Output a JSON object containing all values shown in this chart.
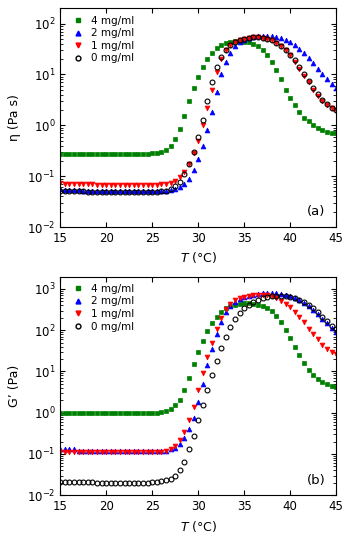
{
  "title_a": "(a)",
  "title_b": "(b)",
  "xlabel": "T (°C)",
  "ylabel_a": "η (Pa s)",
  "ylabel_b": "G’ (Pa)",
  "xlim": [
    15,
    45
  ],
  "ylim_a": [
    0.01,
    200
  ],
  "ylim_b": [
    0.01,
    2000
  ],
  "colors": {
    "4mg": "#008000",
    "2mg": "#0000FF",
    "1mg": "#FF0000",
    "0mg": "#000000"
  },
  "series_eta": {
    "4mg": {
      "T": [
        15.0,
        15.5,
        16.0,
        16.5,
        17.0,
        17.5,
        18.0,
        18.5,
        19.0,
        19.5,
        20.0,
        20.5,
        21.0,
        21.5,
        22.0,
        22.5,
        23.0,
        23.5,
        24.0,
        24.5,
        25.0,
        25.5,
        26.0,
        26.5,
        27.0,
        27.5,
        28.0,
        28.5,
        29.0,
        29.5,
        30.0,
        30.5,
        31.0,
        31.5,
        32.0,
        32.5,
        33.0,
        33.5,
        34.0,
        34.5,
        35.0,
        35.5,
        36.0,
        36.5,
        37.0,
        37.5,
        38.0,
        38.5,
        39.0,
        39.5,
        40.0,
        40.5,
        41.0,
        41.5,
        42.0,
        42.5,
        43.0,
        43.5,
        44.0,
        44.5,
        45.0
      ],
      "eta": [
        0.27,
        0.27,
        0.27,
        0.27,
        0.27,
        0.27,
        0.27,
        0.27,
        0.27,
        0.27,
        0.27,
        0.27,
        0.27,
        0.27,
        0.27,
        0.27,
        0.27,
        0.27,
        0.27,
        0.27,
        0.28,
        0.28,
        0.3,
        0.33,
        0.4,
        0.55,
        0.85,
        1.5,
        3.0,
        5.5,
        9.0,
        14.0,
        20.0,
        27.0,
        33.0,
        38.0,
        42.0,
        44.0,
        45.0,
        45.0,
        44.0,
        43.0,
        40.0,
        36.0,
        30.0,
        24.0,
        18.0,
        12.0,
        8.0,
        5.0,
        3.5,
        2.5,
        1.8,
        1.4,
        1.2,
        1.0,
        0.9,
        0.8,
        0.75,
        0.72,
        0.7
      ]
    },
    "2mg": {
      "T": [
        15.0,
        15.5,
        16.0,
        16.5,
        17.0,
        17.5,
        18.0,
        18.5,
        19.0,
        19.5,
        20.0,
        20.5,
        21.0,
        21.5,
        22.0,
        22.5,
        23.0,
        23.5,
        24.0,
        24.5,
        25.0,
        25.5,
        26.0,
        26.5,
        27.0,
        27.5,
        28.0,
        28.5,
        29.0,
        29.5,
        30.0,
        30.5,
        31.0,
        31.5,
        32.0,
        32.5,
        33.0,
        33.5,
        34.0,
        34.5,
        35.0,
        35.5,
        36.0,
        36.5,
        37.0,
        37.5,
        38.0,
        38.5,
        39.0,
        39.5,
        40.0,
        40.5,
        41.0,
        41.5,
        42.0,
        42.5,
        43.0,
        43.5,
        44.0,
        44.5,
        45.0
      ],
      "eta": [
        0.055,
        0.054,
        0.054,
        0.053,
        0.053,
        0.052,
        0.052,
        0.052,
        0.052,
        0.051,
        0.051,
        0.051,
        0.051,
        0.051,
        0.051,
        0.051,
        0.051,
        0.051,
        0.051,
        0.051,
        0.051,
        0.051,
        0.051,
        0.052,
        0.053,
        0.055,
        0.06,
        0.07,
        0.09,
        0.13,
        0.22,
        0.4,
        0.8,
        1.8,
        4.5,
        10.0,
        18.0,
        27.0,
        36.0,
        43.0,
        48.0,
        52.0,
        54.0,
        56.0,
        57.0,
        57.0,
        57.0,
        55.0,
        52.0,
        48.0,
        43.0,
        38.0,
        32.0,
        26.0,
        21.0,
        17.0,
        13.0,
        10.0,
        8.0,
        6.5,
        5.5
      ]
    },
    "1mg": {
      "T": [
        15.0,
        15.5,
        16.0,
        16.5,
        17.0,
        17.5,
        18.0,
        18.5,
        19.0,
        19.5,
        20.0,
        20.5,
        21.0,
        21.5,
        22.0,
        22.5,
        23.0,
        23.5,
        24.0,
        24.5,
        25.0,
        25.5,
        26.0,
        26.5,
        27.0,
        27.5,
        28.0,
        28.5,
        29.0,
        29.5,
        30.0,
        30.5,
        31.0,
        31.5,
        32.0,
        32.5,
        33.0,
        33.5,
        34.0,
        34.5,
        35.0,
        35.5,
        36.0,
        36.5,
        37.0,
        37.5,
        38.0,
        38.5,
        39.0,
        39.5,
        40.0,
        40.5,
        41.0,
        41.5,
        42.0,
        42.5,
        43.0,
        43.5,
        44.0,
        44.5,
        45.0
      ],
      "eta": [
        0.072,
        0.071,
        0.071,
        0.07,
        0.07,
        0.069,
        0.069,
        0.069,
        0.068,
        0.068,
        0.068,
        0.068,
        0.068,
        0.068,
        0.068,
        0.067,
        0.067,
        0.067,
        0.067,
        0.067,
        0.067,
        0.068,
        0.069,
        0.071,
        0.075,
        0.082,
        0.095,
        0.12,
        0.17,
        0.28,
        0.5,
        1.0,
        2.2,
        5.0,
        11.0,
        20.0,
        30.0,
        38.0,
        44.0,
        48.0,
        51.0,
        53.0,
        54.0,
        54.0,
        53.0,
        51.0,
        47.0,
        42.0,
        36.0,
        30.0,
        24.0,
        18.0,
        13.0,
        9.5,
        7.0,
        5.0,
        3.8,
        3.0,
        2.5,
        2.2,
        2.0
      ]
    },
    "0mg": {
      "T": [
        15.0,
        15.5,
        16.0,
        16.5,
        17.0,
        17.5,
        18.0,
        18.5,
        19.0,
        19.5,
        20.0,
        20.5,
        21.0,
        21.5,
        22.0,
        22.5,
        23.0,
        23.5,
        24.0,
        24.5,
        25.0,
        25.5,
        26.0,
        26.5,
        27.0,
        27.5,
        28.0,
        28.5,
        29.0,
        29.5,
        30.0,
        30.5,
        31.0,
        31.5,
        32.0,
        32.5,
        33.0,
        33.5,
        34.0,
        34.5,
        35.0,
        35.5,
        36.0,
        36.5,
        37.0,
        37.5,
        38.0,
        38.5,
        39.0,
        39.5,
        40.0,
        40.5,
        41.0,
        41.5,
        42.0,
        42.5,
        43.0,
        43.5,
        44.0,
        44.5,
        45.0
      ],
      "eta": [
        0.052,
        0.051,
        0.051,
        0.05,
        0.05,
        0.05,
        0.049,
        0.049,
        0.049,
        0.049,
        0.049,
        0.049,
        0.048,
        0.048,
        0.048,
        0.048,
        0.048,
        0.048,
        0.048,
        0.048,
        0.048,
        0.049,
        0.05,
        0.052,
        0.056,
        0.063,
        0.078,
        0.11,
        0.17,
        0.3,
        0.6,
        1.3,
        3.0,
        7.0,
        14.0,
        22.0,
        31.0,
        38.0,
        44.0,
        48.0,
        51.0,
        53.0,
        54.0,
        54.0,
        53.0,
        51.0,
        47.0,
        42.0,
        36.0,
        30.0,
        24.0,
        19.0,
        14.0,
        10.0,
        7.5,
        5.5,
        4.2,
        3.2,
        2.6,
        2.2,
        2.0
      ]
    }
  },
  "series_Gp": {
    "4mg": {
      "T": [
        15.0,
        15.5,
        16.0,
        16.5,
        17.0,
        17.5,
        18.0,
        18.5,
        19.0,
        19.5,
        20.0,
        20.5,
        21.0,
        21.5,
        22.0,
        22.5,
        23.0,
        23.5,
        24.0,
        24.5,
        25.0,
        25.5,
        26.0,
        26.5,
        27.0,
        27.5,
        28.0,
        28.5,
        29.0,
        29.5,
        30.0,
        30.5,
        31.0,
        31.5,
        32.0,
        32.5,
        33.0,
        33.5,
        34.0,
        34.5,
        35.0,
        35.5,
        36.0,
        36.5,
        37.0,
        37.5,
        38.0,
        38.5,
        39.0,
        39.5,
        40.0,
        40.5,
        41.0,
        41.5,
        42.0,
        42.5,
        43.0,
        43.5,
        44.0,
        44.5,
        45.0
      ],
      "Gp": [
        1.0,
        1.0,
        1.0,
        1.0,
        1.0,
        1.0,
        1.0,
        1.0,
        1.0,
        1.0,
        1.0,
        1.0,
        1.0,
        1.0,
        1.0,
        1.0,
        1.0,
        1.0,
        1.0,
        1.0,
        1.0,
        1.0,
        1.05,
        1.1,
        1.2,
        1.5,
        2.0,
        3.5,
        7.0,
        15.0,
        30.0,
        55.0,
        95.0,
        150.0,
        210.0,
        275.0,
        340.0,
        390.0,
        420.0,
        440.0,
        450.0,
        450.0,
        440.0,
        420.0,
        390.0,
        350.0,
        290.0,
        220.0,
        155.0,
        100.0,
        65.0,
        40.0,
        25.0,
        16.0,
        11.0,
        8.0,
        6.5,
        5.5,
        5.0,
        4.5,
        4.2
      ]
    },
    "2mg": {
      "T": [
        15.0,
        15.5,
        16.0,
        16.5,
        17.0,
        17.5,
        18.0,
        18.5,
        19.0,
        19.5,
        20.0,
        20.5,
        21.0,
        21.5,
        22.0,
        22.5,
        23.0,
        23.5,
        24.0,
        24.5,
        25.0,
        25.5,
        26.0,
        26.5,
        27.0,
        27.5,
        28.0,
        28.5,
        29.0,
        29.5,
        30.0,
        30.5,
        31.0,
        31.5,
        32.0,
        32.5,
        33.0,
        33.5,
        34.0,
        34.5,
        35.0,
        35.5,
        36.0,
        36.5,
        37.0,
        37.5,
        38.0,
        38.5,
        39.0,
        39.5,
        40.0,
        40.5,
        41.0,
        41.5,
        42.0,
        42.5,
        43.0,
        43.5,
        44.0,
        44.5,
        45.0
      ],
      "Gp": [
        0.13,
        0.13,
        0.13,
        0.13,
        0.12,
        0.12,
        0.12,
        0.12,
        0.12,
        0.12,
        0.12,
        0.12,
        0.12,
        0.12,
        0.12,
        0.12,
        0.12,
        0.12,
        0.12,
        0.12,
        0.12,
        0.12,
        0.12,
        0.12,
        0.13,
        0.14,
        0.17,
        0.24,
        0.4,
        0.75,
        1.8,
        5.0,
        14.0,
        35.0,
        80.0,
        160.0,
        270.0,
        380.0,
        480.0,
        560.0,
        630.0,
        690.0,
        730.0,
        760.0,
        780.0,
        790.0,
        790.0,
        780.0,
        760.0,
        720.0,
        680.0,
        620.0,
        550.0,
        470.0,
        390.0,
        310.0,
        245.0,
        190.0,
        150.0,
        115.0,
        90.0
      ]
    },
    "1mg": {
      "T": [
        15.0,
        15.5,
        16.0,
        16.5,
        17.0,
        17.5,
        18.0,
        18.5,
        19.0,
        19.5,
        20.0,
        20.5,
        21.0,
        21.5,
        22.0,
        22.5,
        23.0,
        23.5,
        24.0,
        24.5,
        25.0,
        25.5,
        26.0,
        26.5,
        27.0,
        27.5,
        28.0,
        28.5,
        29.0,
        29.5,
        30.0,
        30.5,
        31.0,
        31.5,
        32.0,
        32.5,
        33.0,
        33.5,
        34.0,
        34.5,
        35.0,
        35.5,
        36.0,
        36.5,
        37.0,
        37.5,
        38.0,
        38.5,
        39.0,
        39.5,
        40.0,
        40.5,
        41.0,
        41.5,
        42.0,
        42.5,
        43.0,
        43.5,
        44.0,
        44.5,
        45.0
      ],
      "Gp": [
        0.11,
        0.11,
        0.11,
        0.11,
        0.11,
        0.11,
        0.11,
        0.11,
        0.11,
        0.11,
        0.11,
        0.11,
        0.11,
        0.11,
        0.11,
        0.11,
        0.11,
        0.11,
        0.11,
        0.11,
        0.11,
        0.11,
        0.11,
        0.12,
        0.13,
        0.16,
        0.22,
        0.35,
        0.65,
        1.4,
        3.5,
        9.0,
        22.0,
        50.0,
        110.0,
        200.0,
        320.0,
        430.0,
        530.0,
        600.0,
        650.0,
        690.0,
        710.0,
        720.0,
        720.0,
        700.0,
        660.0,
        600.0,
        520.0,
        440.0,
        360.0,
        280.0,
        210.0,
        155.0,
        110.0,
        80.0,
        60.0,
        45.0,
        36.0,
        30.0,
        26.0
      ]
    },
    "0mg": {
      "T": [
        15.0,
        15.5,
        16.0,
        16.5,
        17.0,
        17.5,
        18.0,
        18.5,
        19.0,
        19.5,
        20.0,
        20.5,
        21.0,
        21.5,
        22.0,
        22.5,
        23.0,
        23.5,
        24.0,
        24.5,
        25.0,
        25.5,
        26.0,
        26.5,
        27.0,
        27.5,
        28.0,
        28.5,
        29.0,
        29.5,
        30.0,
        30.5,
        31.0,
        31.5,
        32.0,
        32.5,
        33.0,
        33.5,
        34.0,
        34.5,
        35.0,
        35.5,
        36.0,
        36.5,
        37.0,
        37.5,
        38.0,
        38.5,
        39.0,
        39.5,
        40.0,
        40.5,
        41.0,
        41.5,
        42.0,
        42.5,
        43.0,
        43.5,
        44.0,
        44.5,
        45.0
      ],
      "Gp": [
        0.021,
        0.021,
        0.021,
        0.021,
        0.021,
        0.021,
        0.021,
        0.021,
        0.02,
        0.02,
        0.02,
        0.02,
        0.02,
        0.02,
        0.02,
        0.02,
        0.02,
        0.02,
        0.02,
        0.02,
        0.021,
        0.021,
        0.022,
        0.023,
        0.025,
        0.03,
        0.04,
        0.065,
        0.13,
        0.28,
        0.65,
        1.5,
        3.5,
        8.0,
        18.0,
        38.0,
        70.0,
        120.0,
        185.0,
        260.0,
        340.0,
        420.0,
        490.0,
        550.0,
        600.0,
        640.0,
        670.0,
        680.0,
        680.0,
        665.0,
        640.0,
        600.0,
        545.0,
        480.0,
        410.0,
        340.0,
        270.0,
        210.0,
        165.0,
        130.0,
        105.0
      ]
    }
  },
  "legend_labels": [
    "4 mg/ml",
    "2 mg/ml",
    "1 mg/ml",
    "0 mg/ml"
  ],
  "markers": {
    "4mg": "s",
    "2mg": "^",
    "1mg": "v",
    "0mg": "o"
  },
  "marker_filled": {
    "4mg": true,
    "2mg": true,
    "1mg": true,
    "0mg": false
  }
}
